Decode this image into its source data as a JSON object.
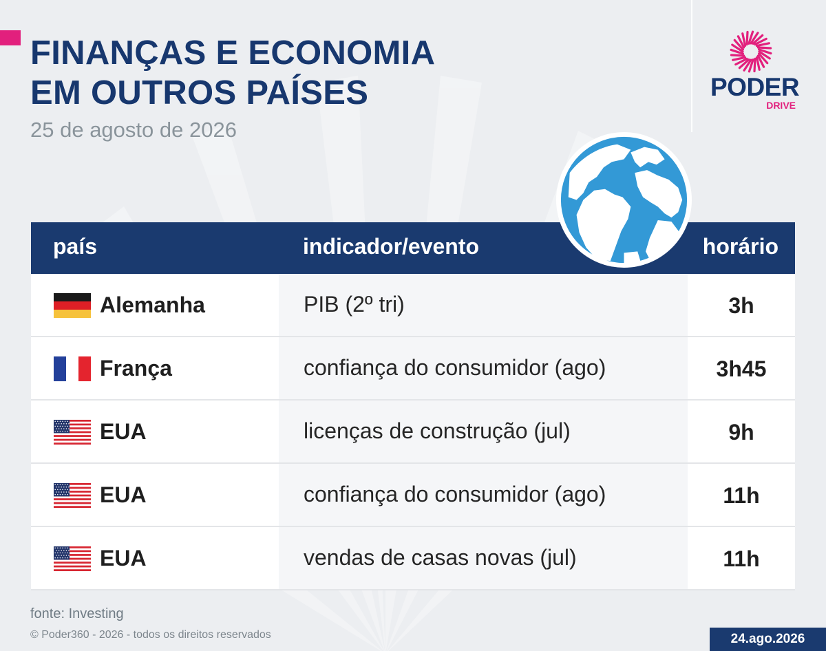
{
  "header": {
    "title_line1": "FINANÇAS E ECONOMIA",
    "title_line2": "EM OUTROS PAÍSES",
    "date": "25 de agosto de 2026"
  },
  "logo": {
    "word": "PODER",
    "sub": "DRIVE"
  },
  "table": {
    "columns": [
      "país",
      "indicador/evento",
      "horário"
    ],
    "rows": [
      {
        "flag": "germany-flag",
        "country": "Alemanha",
        "indicator": "PIB (2º tri)",
        "time": "3h"
      },
      {
        "flag": "france-flag",
        "country": "França",
        "indicator": "confiança do consumidor (ago)",
        "time": "3h45"
      },
      {
        "flag": "usa-flag",
        "country": "EUA",
        "indicator": "licenças de construção (jul)",
        "time": "9h"
      },
      {
        "flag": "usa-flag",
        "country": "EUA",
        "indicator": "confiança do consumidor (ago)",
        "time": "11h"
      },
      {
        "flag": "usa-flag",
        "country": "EUA",
        "indicator": "vendas de casas novas (jul)",
        "time": "11h"
      }
    ]
  },
  "footer": {
    "source": "fonte: Investing",
    "copyright": "© Poder360 - 2026 - todos os direitos reservados",
    "date_badge": "24.ago.2026"
  },
  "colors": {
    "navy": "#1a3a6f",
    "magenta": "#e2207d",
    "globe_blue": "#3399d6"
  }
}
